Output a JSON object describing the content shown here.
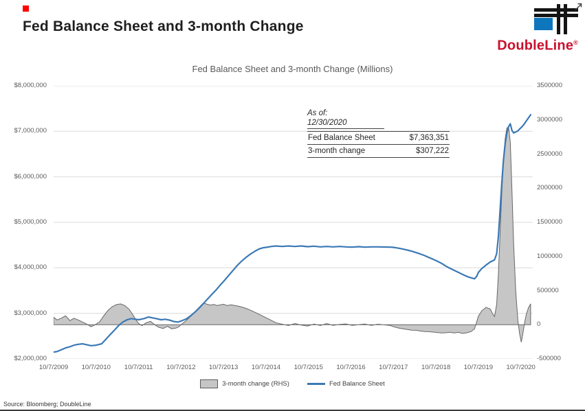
{
  "page": {
    "title": "Fed Balance Sheet and 3-month Change",
    "source": "Source: Bloomberg; DoubleLine"
  },
  "logo": {
    "text": "DoubleLine",
    "reg": "®",
    "brand_red": "#c8102e",
    "brand_blue": "#0e76bc"
  },
  "annotation": {
    "as_of_label": "As of:",
    "as_of_date": "12/30/2020",
    "rows": [
      {
        "label": "Fed Balance Sheet",
        "value": "$7,363,351"
      },
      {
        "label": "3-month change",
        "value": "$307,222"
      }
    ]
  },
  "legend": [
    {
      "label": "3-month change (RHS)",
      "swatch": "area",
      "color": "#c6c6c6",
      "border": "#595959"
    },
    {
      "label": "Fed Balance Sheet",
      "swatch": "line",
      "color": "#3a78b5"
    }
  ],
  "chart_data": {
    "type": "line",
    "title": "Fed Balance Sheet and 3-month Change (Millions)",
    "grid": true,
    "legend_position": "bottom",
    "x_domain": [
      2009.77,
      2021.05
    ],
    "x_ticks": [
      {
        "t": 2009.77,
        "label": "10/7/2009"
      },
      {
        "t": 2010.77,
        "label": "10/7/2010"
      },
      {
        "t": 2011.77,
        "label": "10/7/2011"
      },
      {
        "t": 2012.77,
        "label": "10/7/2012"
      },
      {
        "t": 2013.77,
        "label": "10/7/2013"
      },
      {
        "t": 2014.77,
        "label": "10/7/2014"
      },
      {
        "t": 2015.77,
        "label": "10/7/2015"
      },
      {
        "t": 2016.77,
        "label": "10/7/2016"
      },
      {
        "t": 2017.77,
        "label": "10/7/2017"
      },
      {
        "t": 2018.77,
        "label": "10/7/2018"
      },
      {
        "t": 2019.77,
        "label": "10/7/2019"
      },
      {
        "t": 2020.77,
        "label": "10/7/2020"
      }
    ],
    "left_axis": {
      "min": 2000000,
      "max": 8000000,
      "step": 1000000,
      "labels": [
        "$8,000,000",
        "$7,000,000",
        "$6,000,000",
        "$5,000,000",
        "$4,000,000",
        "$3,000,000",
        "$2,000,000"
      ]
    },
    "right_axis": {
      "min": -500000,
      "max": 3500000,
      "step": 500000,
      "labels": [
        "3500000",
        "3000000",
        "2500000",
        "2000000",
        "1500000",
        "1000000",
        "500000",
        "0",
        "-500000"
      ]
    },
    "series": [
      {
        "name": "Fed Balance Sheet",
        "type": "line",
        "axis": "left",
        "color": "#3a78b5",
        "points": [
          [
            2009.77,
            2150000
          ],
          [
            2009.85,
            2160000
          ],
          [
            2009.95,
            2200000
          ],
          [
            2010.05,
            2240000
          ],
          [
            2010.15,
            2265000
          ],
          [
            2010.25,
            2300000
          ],
          [
            2010.35,
            2320000
          ],
          [
            2010.45,
            2330000
          ],
          [
            2010.55,
            2310000
          ],
          [
            2010.65,
            2290000
          ],
          [
            2010.77,
            2300000
          ],
          [
            2010.9,
            2330000
          ],
          [
            2011.0,
            2430000
          ],
          [
            2011.1,
            2530000
          ],
          [
            2011.2,
            2630000
          ],
          [
            2011.3,
            2730000
          ],
          [
            2011.4,
            2810000
          ],
          [
            2011.5,
            2860000
          ],
          [
            2011.6,
            2885000
          ],
          [
            2011.7,
            2870000
          ],
          [
            2011.77,
            2860000
          ],
          [
            2011.9,
            2885000
          ],
          [
            2012.0,
            2920000
          ],
          [
            2012.1,
            2900000
          ],
          [
            2012.2,
            2880000
          ],
          [
            2012.3,
            2860000
          ],
          [
            2012.4,
            2870000
          ],
          [
            2012.5,
            2850000
          ],
          [
            2012.6,
            2820000
          ],
          [
            2012.7,
            2810000
          ],
          [
            2012.77,
            2830000
          ],
          [
            2012.9,
            2880000
          ],
          [
            2013.0,
            2950000
          ],
          [
            2013.1,
            3030000
          ],
          [
            2013.2,
            3120000
          ],
          [
            2013.3,
            3220000
          ],
          [
            2013.4,
            3320000
          ],
          [
            2013.5,
            3420000
          ],
          [
            2013.6,
            3520000
          ],
          [
            2013.7,
            3630000
          ],
          [
            2013.77,
            3700000
          ],
          [
            2013.9,
            3840000
          ],
          [
            2014.0,
            3950000
          ],
          [
            2014.1,
            4060000
          ],
          [
            2014.2,
            4150000
          ],
          [
            2014.3,
            4230000
          ],
          [
            2014.4,
            4300000
          ],
          [
            2014.5,
            4360000
          ],
          [
            2014.6,
            4410000
          ],
          [
            2014.7,
            4440000
          ],
          [
            2014.77,
            4450000
          ],
          [
            2014.9,
            4470000
          ],
          [
            2015.0,
            4480000
          ],
          [
            2015.15,
            4470000
          ],
          [
            2015.3,
            4480000
          ],
          [
            2015.45,
            4470000
          ],
          [
            2015.6,
            4480000
          ],
          [
            2015.75,
            4465000
          ],
          [
            2015.9,
            4475000
          ],
          [
            2016.05,
            4460000
          ],
          [
            2016.2,
            4470000
          ],
          [
            2016.35,
            4460000
          ],
          [
            2016.5,
            4470000
          ],
          [
            2016.65,
            4460000
          ],
          [
            2016.8,
            4455000
          ],
          [
            2016.95,
            4465000
          ],
          [
            2017.1,
            4455000
          ],
          [
            2017.25,
            4460000
          ],
          [
            2017.4,
            4460000
          ],
          [
            2017.55,
            4458000
          ],
          [
            2017.7,
            4455000
          ],
          [
            2017.77,
            4450000
          ],
          [
            2017.9,
            4430000
          ],
          [
            2018.0,
            4410000
          ],
          [
            2018.1,
            4390000
          ],
          [
            2018.2,
            4365000
          ],
          [
            2018.3,
            4335000
          ],
          [
            2018.4,
            4305000
          ],
          [
            2018.5,
            4270000
          ],
          [
            2018.6,
            4230000
          ],
          [
            2018.7,
            4190000
          ],
          [
            2018.77,
            4160000
          ],
          [
            2018.9,
            4100000
          ],
          [
            2019.0,
            4040000
          ],
          [
            2019.1,
            3990000
          ],
          [
            2019.2,
            3945000
          ],
          [
            2019.3,
            3900000
          ],
          [
            2019.4,
            3855000
          ],
          [
            2019.5,
            3810000
          ],
          [
            2019.6,
            3780000
          ],
          [
            2019.68,
            3760000
          ],
          [
            2019.73,
            3810000
          ],
          [
            2019.77,
            3900000
          ],
          [
            2019.85,
            3985000
          ],
          [
            2019.95,
            4060000
          ],
          [
            2020.05,
            4130000
          ],
          [
            2020.15,
            4175000
          ],
          [
            2020.2,
            4310000
          ],
          [
            2020.24,
            4670000
          ],
          [
            2020.28,
            5250000
          ],
          [
            2020.32,
            5850000
          ],
          [
            2020.36,
            6370000
          ],
          [
            2020.4,
            6720000
          ],
          [
            2020.44,
            6960000
          ],
          [
            2020.48,
            7100000
          ],
          [
            2020.52,
            7165000
          ],
          [
            2020.56,
            7020000
          ],
          [
            2020.6,
            6965000
          ],
          [
            2020.65,
            6985000
          ],
          [
            2020.7,
            7010000
          ],
          [
            2020.75,
            7060000
          ],
          [
            2020.8,
            7105000
          ],
          [
            2020.85,
            7160000
          ],
          [
            2020.9,
            7230000
          ],
          [
            2020.95,
            7295000
          ],
          [
            2021.0,
            7363351
          ]
        ]
      },
      {
        "name": "3-month change (RHS)",
        "type": "area",
        "axis": "right",
        "fill": "#c6c6c6",
        "stroke": "#666666",
        "points": [
          [
            2009.77,
            110000
          ],
          [
            2009.85,
            70000
          ],
          [
            2009.95,
            95000
          ],
          [
            2010.05,
            130000
          ],
          [
            2010.1,
            100000
          ],
          [
            2010.15,
            60000
          ],
          [
            2010.25,
            95000
          ],
          [
            2010.35,
            70000
          ],
          [
            2010.45,
            40000
          ],
          [
            2010.55,
            10000
          ],
          [
            2010.65,
            -30000
          ],
          [
            2010.72,
            -10000
          ],
          [
            2010.77,
            10000
          ],
          [
            2010.85,
            40000
          ],
          [
            2010.95,
            130000
          ],
          [
            2011.05,
            210000
          ],
          [
            2011.15,
            265000
          ],
          [
            2011.25,
            295000
          ],
          [
            2011.35,
            305000
          ],
          [
            2011.45,
            280000
          ],
          [
            2011.55,
            225000
          ],
          [
            2011.65,
            130000
          ],
          [
            2011.72,
            60000
          ],
          [
            2011.77,
            20000
          ],
          [
            2011.85,
            -15000
          ],
          [
            2011.95,
            30000
          ],
          [
            2012.05,
            50000
          ],
          [
            2012.15,
            0
          ],
          [
            2012.25,
            -40000
          ],
          [
            2012.35,
            -55000
          ],
          [
            2012.45,
            -25000
          ],
          [
            2012.55,
            -60000
          ],
          [
            2012.65,
            -50000
          ],
          [
            2012.72,
            -30000
          ],
          [
            2012.77,
            0
          ],
          [
            2012.85,
            40000
          ],
          [
            2012.95,
            95000
          ],
          [
            2013.05,
            155000
          ],
          [
            2013.15,
            225000
          ],
          [
            2013.25,
            290000
          ],
          [
            2013.3,
            320000
          ],
          [
            2013.38,
            300000
          ],
          [
            2013.46,
            288000
          ],
          [
            2013.54,
            298000
          ],
          [
            2013.62,
            282000
          ],
          [
            2013.7,
            292000
          ],
          [
            2013.77,
            300000
          ],
          [
            2013.85,
            282000
          ],
          [
            2013.95,
            292000
          ],
          [
            2014.05,
            280000
          ],
          [
            2014.15,
            268000
          ],
          [
            2014.25,
            250000
          ],
          [
            2014.35,
            228000
          ],
          [
            2014.45,
            200000
          ],
          [
            2014.55,
            170000
          ],
          [
            2014.65,
            140000
          ],
          [
            2014.77,
            102000
          ],
          [
            2014.9,
            62000
          ],
          [
            2015.0,
            30000
          ],
          [
            2015.15,
            8000
          ],
          [
            2015.3,
            -12000
          ],
          [
            2015.45,
            18000
          ],
          [
            2015.6,
            -5000
          ],
          [
            2015.75,
            -20000
          ],
          [
            2015.9,
            10000
          ],
          [
            2016.05,
            -12000
          ],
          [
            2016.2,
            18000
          ],
          [
            2016.35,
            -10000
          ],
          [
            2016.5,
            5000
          ],
          [
            2016.65,
            12000
          ],
          [
            2016.8,
            -10000
          ],
          [
            2016.95,
            2000
          ],
          [
            2017.1,
            10000
          ],
          [
            2017.25,
            -10000
          ],
          [
            2017.4,
            8000
          ],
          [
            2017.55,
            -2000
          ],
          [
            2017.7,
            -12000
          ],
          [
            2017.77,
            -30000
          ],
          [
            2017.9,
            -50000
          ],
          [
            2018.0,
            -60000
          ],
          [
            2018.1,
            -70000
          ],
          [
            2018.2,
            -80000
          ],
          [
            2018.3,
            -82000
          ],
          [
            2018.4,
            -92000
          ],
          [
            2018.5,
            -100000
          ],
          [
            2018.6,
            -102000
          ],
          [
            2018.7,
            -108000
          ],
          [
            2018.77,
            -112000
          ],
          [
            2018.9,
            -120000
          ],
          [
            2019.0,
            -118000
          ],
          [
            2019.1,
            -110000
          ],
          [
            2019.2,
            -120000
          ],
          [
            2019.3,
            -112000
          ],
          [
            2019.4,
            -128000
          ],
          [
            2019.5,
            -118000
          ],
          [
            2019.6,
            -100000
          ],
          [
            2019.68,
            -60000
          ],
          [
            2019.73,
            40000
          ],
          [
            2019.77,
            125000
          ],
          [
            2019.85,
            205000
          ],
          [
            2019.95,
            255000
          ],
          [
            2020.05,
            230000
          ],
          [
            2020.1,
            165000
          ],
          [
            2020.15,
            120000
          ],
          [
            2020.2,
            300000
          ],
          [
            2020.24,
            720000
          ],
          [
            2020.28,
            1320000
          ],
          [
            2020.32,
            1920000
          ],
          [
            2020.36,
            2420000
          ],
          [
            2020.4,
            2720000
          ],
          [
            2020.44,
            2880000
          ],
          [
            2020.48,
            2900000
          ],
          [
            2020.52,
            2680000
          ],
          [
            2020.56,
            1980000
          ],
          [
            2020.6,
            1180000
          ],
          [
            2020.65,
            480000
          ],
          [
            2020.7,
            60000
          ],
          [
            2020.74,
            -130000
          ],
          [
            2020.78,
            -255000
          ],
          [
            2020.82,
            -120000
          ],
          [
            2020.86,
            40000
          ],
          [
            2020.9,
            155000
          ],
          [
            2020.95,
            250000
          ],
          [
            2021.0,
            307222
          ]
        ]
      }
    ]
  }
}
